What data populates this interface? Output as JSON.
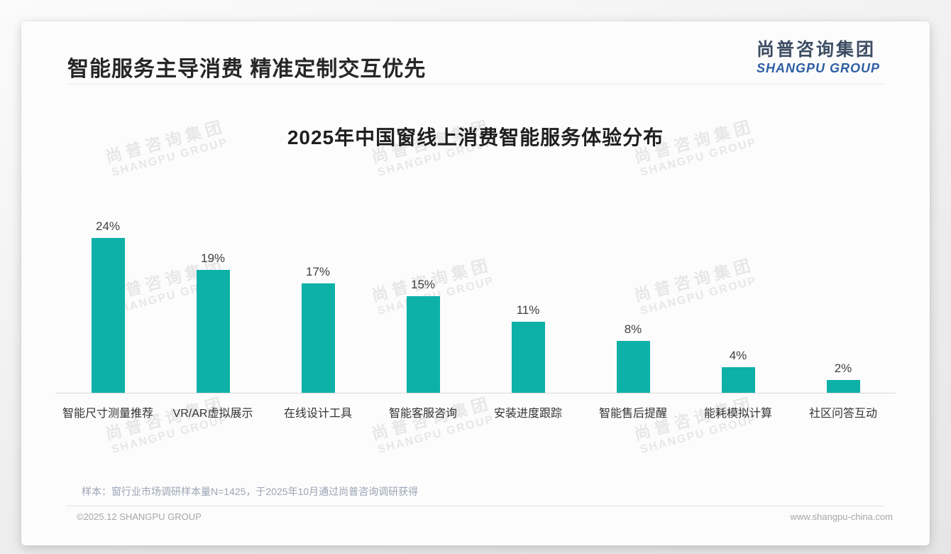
{
  "header": {
    "title": "智能服务主导消费 精准定制交互优先"
  },
  "logo": {
    "cn": "尚普咨询集团",
    "en": "SHANGPU GROUP"
  },
  "watermark": {
    "cn": "尚普咨询集团",
    "en": "SHANGPU GROUP"
  },
  "chart_data": {
    "type": "bar",
    "title": "2025年中国窗线上消费智能服务体验分布",
    "categories": [
      "智能尺寸测量推荐",
      "VR/AR虚拟展示",
      "在线设计工具",
      "智能客服咨询",
      "安装进度跟踪",
      "智能售后提醒",
      "能耗模拟计算",
      "社区问答互动"
    ],
    "values": [
      24,
      19,
      17,
      15,
      11,
      8,
      4,
      2
    ],
    "unit": "%",
    "value_labels": [
      "24%",
      "19%",
      "17%",
      "15%",
      "11%",
      "8%",
      "4%",
      "2%"
    ],
    "xlabel": "",
    "ylabel": "",
    "ylim": [
      0,
      26
    ],
    "grid": false,
    "legend": null,
    "bar_color": "#0db1a7"
  },
  "note": "样本：窗行业市场调研样本量N=1425，于2025年10月通过尚普咨询调研获得",
  "footer": {
    "left": "©2025.12 SHANGPU GROUP",
    "right": "www.shangpu-china.com"
  },
  "colors": {
    "bar": "#0db1a7",
    "title_text": "#262626",
    "logo_cn": "#3d4d63",
    "logo_en": "#2e5fa3",
    "note_text": "#9aa5b5",
    "footer_text": "#a7a7a7",
    "axis_line": "#d9d9d9"
  }
}
